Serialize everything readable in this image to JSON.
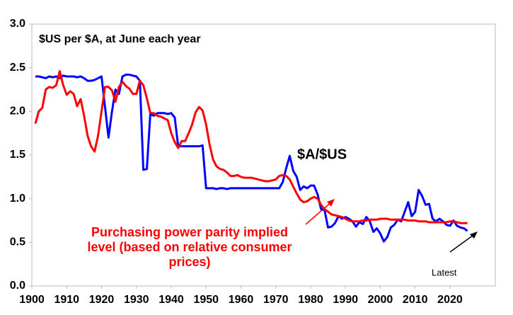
{
  "chart_data": {
    "type": "line",
    "title": "$US per $A, at June each year",
    "x": [
      1901,
      1902,
      1903,
      1904,
      1905,
      1906,
      1907,
      1908,
      1909,
      1910,
      1911,
      1912,
      1913,
      1914,
      1915,
      1916,
      1917,
      1918,
      1919,
      1920,
      1921,
      1922,
      1923,
      1924,
      1925,
      1926,
      1927,
      1928,
      1929,
      1930,
      1931,
      1932,
      1933,
      1934,
      1935,
      1936,
      1937,
      1938,
      1939,
      1940,
      1941,
      1942,
      1943,
      1944,
      1945,
      1946,
      1947,
      1948,
      1949,
      1950,
      1951,
      1952,
      1953,
      1954,
      1955,
      1956,
      1957,
      1958,
      1959,
      1960,
      1961,
      1962,
      1963,
      1964,
      1965,
      1966,
      1967,
      1968,
      1969,
      1970,
      1971,
      1972,
      1973,
      1974,
      1975,
      1976,
      1977,
      1978,
      1979,
      1980,
      1981,
      1982,
      1983,
      1984,
      1985,
      1986,
      1987,
      1988,
      1989,
      1990,
      1991,
      1992,
      1993,
      1994,
      1995,
      1996,
      1997,
      1998,
      1999,
      2000,
      2001,
      2002,
      2003,
      2004,
      2005,
      2006,
      2007,
      2008,
      2009,
      2010,
      2011,
      2012,
      2013,
      2014,
      2015,
      2016,
      2017,
      2018,
      2019,
      2020,
      2021,
      2022,
      2023,
      2024,
      2025
    ],
    "series": [
      {
        "name": "$A/$US",
        "color": "#0000ff",
        "values": [
          2.4,
          2.4,
          2.39,
          2.38,
          2.4,
          2.39,
          2.4,
          2.38,
          2.41,
          2.4,
          2.4,
          2.4,
          2.39,
          2.4,
          2.38,
          2.35,
          2.35,
          2.36,
          2.38,
          2.4,
          2.05,
          1.7,
          2.0,
          2.25,
          2.2,
          2.4,
          2.42,
          2.42,
          2.41,
          2.4,
          2.35,
          1.33,
          1.34,
          1.97,
          1.95,
          1.98,
          1.98,
          1.98,
          1.97,
          1.98,
          1.93,
          1.6,
          1.6,
          1.6,
          1.6,
          1.6,
          1.6,
          1.6,
          1.61,
          1.12,
          1.12,
          1.12,
          1.11,
          1.12,
          1.12,
          1.11,
          1.12,
          1.12,
          1.12,
          1.12,
          1.12,
          1.12,
          1.12,
          1.12,
          1.12,
          1.12,
          1.12,
          1.12,
          1.12,
          1.12,
          1.12,
          1.19,
          1.35,
          1.49,
          1.32,
          1.25,
          1.1,
          1.14,
          1.12,
          1.15,
          1.15,
          1.05,
          0.88,
          0.87,
          0.67,
          0.68,
          0.72,
          0.8,
          0.77,
          0.79,
          0.77,
          0.74,
          0.68,
          0.73,
          0.71,
          0.79,
          0.74,
          0.62,
          0.66,
          0.6,
          0.51,
          0.56,
          0.67,
          0.7,
          0.76,
          0.74,
          0.85,
          0.96,
          0.8,
          0.85,
          1.1,
          1.03,
          0.93,
          0.94,
          0.77,
          0.74,
          0.77,
          0.74,
          0.7,
          0.69,
          0.75,
          0.69,
          0.67,
          0.66,
          0.63
        ]
      },
      {
        "name": "Purchasing power parity implied level (based on relative consumer prices)",
        "color": "#ff0000",
        "values": [
          1.86,
          2.0,
          2.04,
          2.25,
          2.28,
          2.27,
          2.3,
          2.46,
          2.3,
          2.19,
          2.23,
          2.2,
          2.06,
          2.14,
          1.95,
          1.72,
          1.6,
          1.54,
          1.72,
          2.0,
          2.28,
          2.28,
          2.24,
          2.11,
          2.28,
          2.34,
          2.29,
          2.26,
          2.2,
          2.2,
          2.35,
          2.3,
          2.15,
          1.98,
          1.98,
          1.95,
          1.94,
          1.92,
          1.9,
          1.75,
          1.65,
          1.58,
          1.66,
          1.66,
          1.75,
          1.85,
          1.99,
          2.05,
          2.01,
          1.85,
          1.62,
          1.45,
          1.37,
          1.34,
          1.33,
          1.3,
          1.26,
          1.26,
          1.27,
          1.25,
          1.24,
          1.24,
          1.24,
          1.23,
          1.22,
          1.21,
          1.2,
          1.2,
          1.21,
          1.22,
          1.26,
          1.27,
          1.26,
          1.22,
          1.14,
          1.06,
          0.99,
          0.96,
          0.97,
          1.0,
          1.02,
          1.0,
          0.93,
          0.88,
          0.85,
          0.82,
          0.81,
          0.8,
          0.79,
          0.77,
          0.75,
          0.74,
          0.74,
          0.74,
          0.75,
          0.75,
          0.76,
          0.76,
          0.76,
          0.77,
          0.77,
          0.77,
          0.76,
          0.76,
          0.76,
          0.76,
          0.76,
          0.75,
          0.75,
          0.75,
          0.74,
          0.74,
          0.74,
          0.73,
          0.73,
          0.73,
          0.73,
          0.73,
          0.73,
          0.74,
          0.74,
          0.73,
          0.72,
          0.72,
          0.72
        ]
      }
    ],
    "xlim": [
      1900,
      2033
    ],
    "xticks": [
      1900,
      1910,
      1920,
      1930,
      1940,
      1950,
      1960,
      1970,
      1980,
      1990,
      2000,
      2010,
      2020
    ],
    "ylim": [
      0,
      3
    ],
    "yticks": [
      {
        "value": 0,
        "label": "0.0"
      },
      0.5,
      {
        "value": 1,
        "label": "1.0"
      },
      1.5,
      {
        "value": 2,
        "label": "2.0"
      },
      2.5,
      {
        "value": 3,
        "label": "3.0"
      }
    ],
    "grid": false,
    "annotation": "Latest"
  }
}
